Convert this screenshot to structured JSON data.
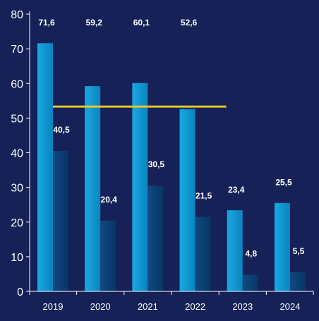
{
  "chart_data": {
    "type": "bar",
    "categories": [
      "2019",
      "2020",
      "2021",
      "2022",
      "2023",
      "2024"
    ],
    "series": [
      {
        "values": [
          71.6,
          59.2,
          60.1,
          52.6,
          23.4,
          25.5
        ],
        "labels": [
          "71,6",
          "59,2",
          "60,1",
          "52,6",
          "23,4",
          "25,5"
        ],
        "color": "#0e94ce"
      },
      {
        "values": [
          40.5,
          20.4,
          30.5,
          21.5,
          4.8,
          5.5
        ],
        "labels": [
          "40,5",
          "20,4",
          "30,5",
          "21,5",
          "4,8",
          "5,5"
        ],
        "color": "#0c3f73"
      }
    ],
    "reference_line": {
      "value": 53.3,
      "from_category": "2019",
      "to_category": "2022",
      "color": "#e7c52a"
    },
    "ylim": [
      0,
      80
    ],
    "yticks": [
      "0",
      "10",
      "20",
      "30",
      "40",
      "50",
      "60",
      "70",
      "80"
    ],
    "title": "",
    "xlabel": "",
    "ylabel": "",
    "grid": false,
    "background_color": "#152157"
  }
}
